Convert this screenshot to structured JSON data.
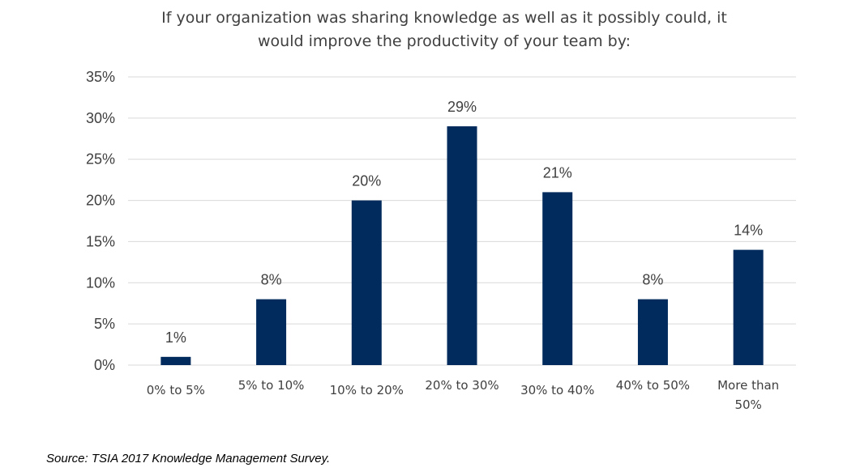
{
  "chart_data": {
    "type": "bar",
    "title_lines": [
      "If your organization was sharing knowledge as well as it possibly could, it",
      "would improve the productivity of your team by:"
    ],
    "categories": [
      [
        "0% to 5%"
      ],
      [
        "5% to 10%"
      ],
      [
        "10% to 20%"
      ],
      [
        "20% to 30%"
      ],
      [
        "30% to 40%"
      ],
      [
        "40% to 50%"
      ],
      [
        "More than",
        "50%"
      ]
    ],
    "values": [
      1,
      8,
      20,
      29,
      21,
      8,
      14
    ],
    "data_labels": [
      "1%",
      "8%",
      "20%",
      "29%",
      "21%",
      "8%",
      "14%"
    ],
    "ylim": [
      0,
      35
    ],
    "yticks": [
      0,
      5,
      10,
      15,
      20,
      25,
      30,
      35
    ],
    "ytick_labels": [
      "0%",
      "5%",
      "10%",
      "15%",
      "20%",
      "25%",
      "30%",
      "35%"
    ],
    "grid": true,
    "bar_color": "#002b5c",
    "xlabel": "",
    "ylabel": ""
  },
  "source": "Source: TSIA 2017 Knowledge Management Survey."
}
